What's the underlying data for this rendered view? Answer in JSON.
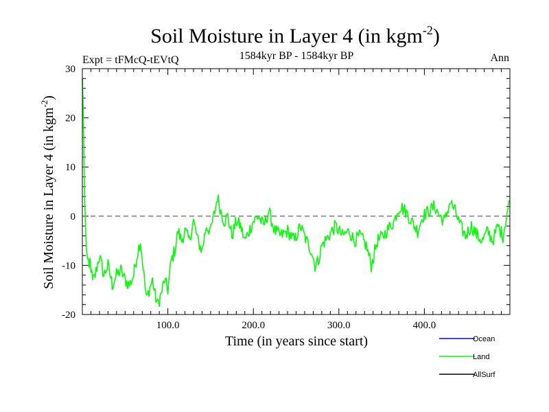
{
  "chart_data": {
    "type": "line",
    "title": "Soil Moisture in Layer 4 (in kgm",
    "title_superscript": "-2",
    "title_close": ")",
    "subtitle_left": "Expt = tFMcQ-tEVtQ",
    "subtitle_center": "1584kyr BP - 1584kyr BP",
    "subtitle_right": "Ann",
    "xlabel": "Time (in years since start)",
    "ylabel": "Soil Moisture in Layer 4 (in kgm",
    "ylabel_superscript": "-2",
    "ylabel_close": ")",
    "xlim": [
      0,
      500
    ],
    "ylim": [
      -20,
      30
    ],
    "x_ticks": [
      100,
      200,
      300,
      400
    ],
    "x_tick_labels": [
      "100.0",
      "200.0",
      "300.0",
      "400.0"
    ],
    "y_ticks": [
      -20,
      -10,
      0,
      10,
      20,
      30
    ],
    "y_tick_labels": [
      "-20",
      "-10",
      "0",
      "10",
      "20",
      "30"
    ],
    "reference_line": {
      "y": 0,
      "style": "dashed"
    },
    "legend": [
      {
        "name": "Ocean",
        "color": "#0000ff"
      },
      {
        "name": "Land",
        "color": "#00ff00"
      },
      {
        "name": "AllSurf",
        "color": "#000000"
      }
    ],
    "series": [
      {
        "name": "Land",
        "color": "#00ff00",
        "anchors": [
          [
            0,
            28
          ],
          [
            1,
            22
          ],
          [
            2,
            10
          ],
          [
            3,
            2
          ],
          [
            4,
            -4
          ],
          [
            6,
            -9
          ],
          [
            8,
            -11
          ],
          [
            9,
            -9
          ],
          [
            12,
            -13.5
          ],
          [
            15,
            -12
          ],
          [
            20,
            -8
          ],
          [
            25,
            -12
          ],
          [
            30,
            -10
          ],
          [
            35,
            -14
          ],
          [
            40,
            -12
          ],
          [
            45,
            -11
          ],
          [
            50,
            -13
          ],
          [
            55,
            -14
          ],
          [
            60,
            -12
          ],
          [
            65,
            -7
          ],
          [
            68,
            -5
          ],
          [
            72,
            -12
          ],
          [
            75,
            -17
          ],
          [
            78,
            -15
          ],
          [
            82,
            -13
          ],
          [
            85,
            -16
          ],
          [
            88,
            -18
          ],
          [
            92,
            -16
          ],
          [
            96,
            -13
          ],
          [
            100,
            -15
          ],
          [
            104,
            -9
          ],
          [
            108,
            -7
          ],
          [
            112,
            -3
          ],
          [
            116,
            -5
          ],
          [
            120,
            -3
          ],
          [
            125,
            -5
          ],
          [
            130,
            -1
          ],
          [
            135,
            -5
          ],
          [
            140,
            -7
          ],
          [
            145,
            -2
          ],
          [
            150,
            -3
          ],
          [
            155,
            1
          ],
          [
            158,
            4
          ],
          [
            162,
            1
          ],
          [
            166,
            -1
          ],
          [
            170,
            0
          ],
          [
            175,
            -4
          ],
          [
            180,
            -1
          ],
          [
            185,
            -2
          ],
          [
            190,
            -5
          ],
          [
            195,
            -3
          ],
          [
            200,
            -1
          ],
          [
            206,
            0
          ],
          [
            212,
            -2
          ],
          [
            218,
            1
          ],
          [
            225,
            -3
          ],
          [
            232,
            -4
          ],
          [
            240,
            -3
          ],
          [
            248,
            -5
          ],
          [
            255,
            -2
          ],
          [
            262,
            -5
          ],
          [
            268,
            -7
          ],
          [
            272,
            -10
          ],
          [
            276,
            -9
          ],
          [
            280,
            -6
          ],
          [
            288,
            -4
          ],
          [
            296,
            -2
          ],
          [
            304,
            -4
          ],
          [
            312,
            -3
          ],
          [
            318,
            -5
          ],
          [
            325,
            -4
          ],
          [
            332,
            -6
          ],
          [
            338,
            -10
          ],
          [
            345,
            -5
          ],
          [
            352,
            -4
          ],
          [
            360,
            -2
          ],
          [
            365,
            -1
          ],
          [
            368,
            1
          ],
          [
            372,
            2
          ],
          [
            378,
            1
          ],
          [
            385,
            -1
          ],
          [
            392,
            -3
          ],
          [
            398,
            0
          ],
          [
            405,
            1
          ],
          [
            412,
            2
          ],
          [
            418,
            0
          ],
          [
            424,
            -1
          ],
          [
            430,
            3
          ],
          [
            436,
            1
          ],
          [
            442,
            -2
          ],
          [
            448,
            -4
          ],
          [
            455,
            -2
          ],
          [
            462,
            -4
          ],
          [
            468,
            -5
          ],
          [
            474,
            -3
          ],
          [
            480,
            -5
          ],
          [
            486,
            -2
          ],
          [
            492,
            -4
          ],
          [
            497,
            1
          ],
          [
            500,
            3
          ]
        ],
        "noise_amplitude": 1.4
      },
      {
        "name": "Ocean",
        "color": "#0000ff",
        "anchors": []
      },
      {
        "name": "AllSurf",
        "color": "#000000",
        "anchors": []
      }
    ]
  }
}
